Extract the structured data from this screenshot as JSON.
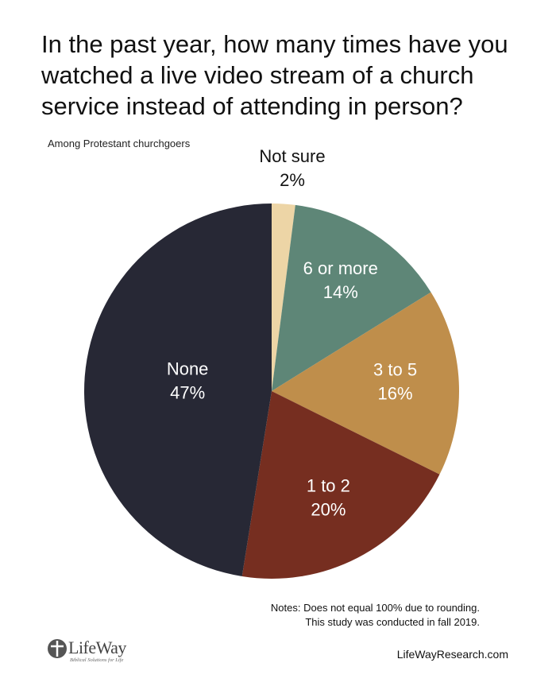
{
  "chart_data": {
    "type": "pie",
    "title": "In the past year, how many times have you watched a live video stream of a church service instead of attending in person?",
    "subtitle": "Among Protestant churchgoers",
    "slices": [
      {
        "label": "Not sure",
        "value": 2,
        "value_label": "2%",
        "color": "#EDD5A6",
        "label_color": "#111111"
      },
      {
        "label": "6 or more",
        "value": 14,
        "value_label": "14%",
        "color": "#5E8677",
        "label_color": "#ffffff"
      },
      {
        "label": "3 to 5",
        "value": 16,
        "value_label": "16%",
        "color": "#BF8E4B",
        "label_color": "#ffffff"
      },
      {
        "label": "1 to 2",
        "value": 20,
        "value_label": "20%",
        "color": "#762E20",
        "label_color": "#ffffff"
      },
      {
        "label": "None",
        "value": 47,
        "value_label": "47%",
        "color": "#272835",
        "label_color": "#ffffff"
      }
    ],
    "start": "top",
    "direction": "clockwise"
  },
  "notes": [
    "Notes: Does not equal 100% due to rounding.",
    "This study was conducted in fall 2019."
  ],
  "footer": {
    "brand": "LifeWay",
    "tagline": "Biblical Solutions for Life",
    "website": "LifeWayResearch.com"
  }
}
